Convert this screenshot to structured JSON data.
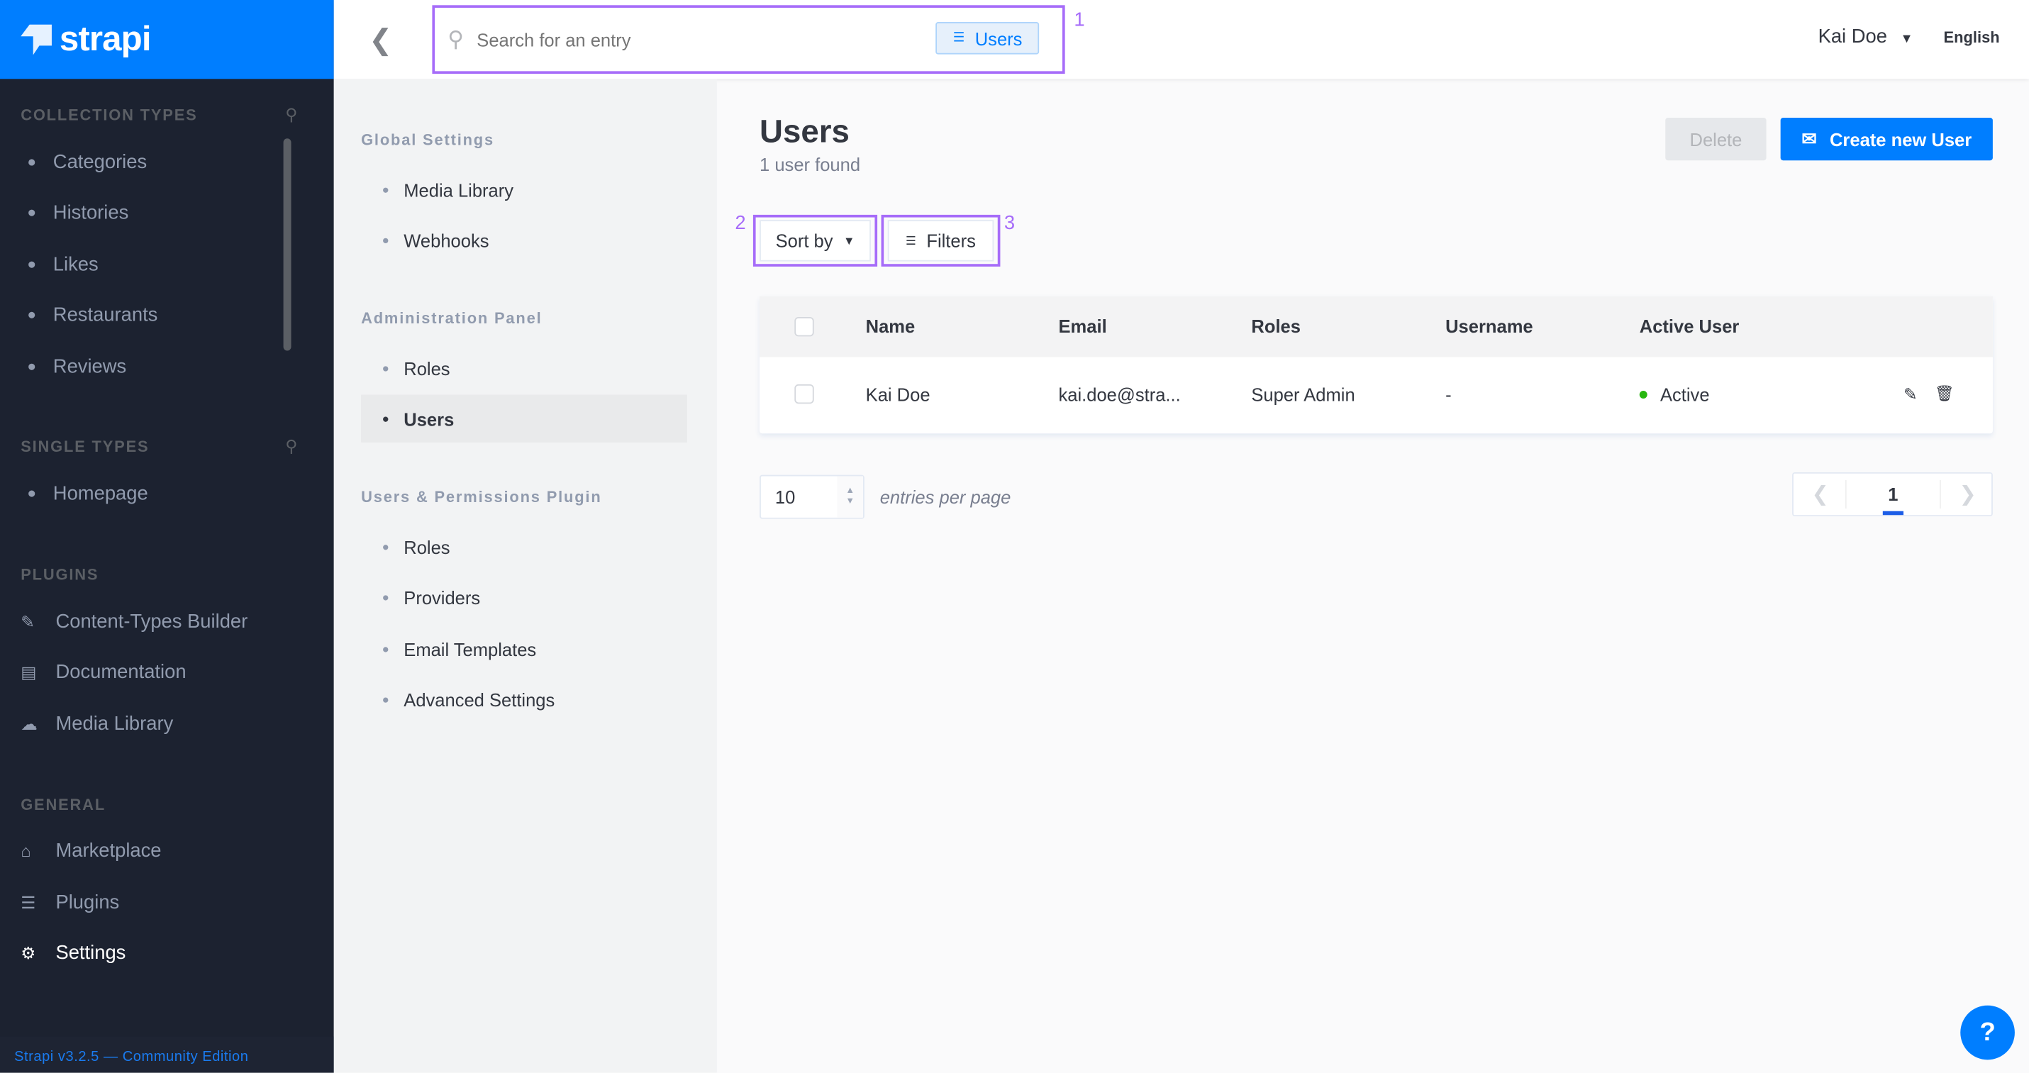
{
  "brand": {
    "name": "strapi",
    "version": "Strapi v3.2.5 — Community Edition",
    "accent": "#007eff"
  },
  "sidebar": {
    "collection_types": {
      "title": "Collection Types",
      "items": [
        "Categories",
        "Histories",
        "Likes",
        "Restaurants",
        "Reviews"
      ]
    },
    "single_types": {
      "title": "Single Types",
      "items": [
        "Homepage"
      ]
    },
    "plugins": {
      "title": "Plugins",
      "items": [
        {
          "label": "Content-Types Builder",
          "icon": "paintbrush-icon"
        },
        {
          "label": "Documentation",
          "icon": "book-icon"
        },
        {
          "label": "Media Library",
          "icon": "cloud-upload-icon"
        }
      ]
    },
    "general": {
      "title": "General",
      "items": [
        {
          "label": "Marketplace",
          "icon": "shopping-basket-icon"
        },
        {
          "label": "Plugins",
          "icon": "list-icon"
        },
        {
          "label": "Settings",
          "icon": "gear-icon",
          "active": true
        }
      ]
    }
  },
  "header": {
    "search_placeholder": "Search for an entry",
    "filter_chip": "Users",
    "user": "Kai Doe",
    "language": "English"
  },
  "annotations": [
    "1",
    "2",
    "3"
  ],
  "settings_nav": {
    "global": {
      "title": "Global Settings",
      "items": [
        "Media Library",
        "Webhooks"
      ]
    },
    "admin": {
      "title": "Administration Panel",
      "items": [
        "Roles",
        "Users"
      ],
      "active": "Users"
    },
    "users_permissions": {
      "title": "Users & Permissions Plugin",
      "items": [
        "Roles",
        "Providers",
        "Email Templates",
        "Advanced Settings"
      ]
    }
  },
  "main": {
    "title": "Users",
    "subtitle": "1 user found",
    "delete_label": "Delete",
    "create_label": "Create new User",
    "sort_label": "Sort by",
    "filters_label": "Filters",
    "columns": [
      "Name",
      "Email",
      "Roles",
      "Username",
      "Active User"
    ],
    "rows": [
      {
        "name": "Kai Doe",
        "email": "kai.doe@stra...",
        "roles": "Super Admin",
        "username": "-",
        "active": "Active",
        "active_color": "#27b70f"
      }
    ],
    "per_page": "10",
    "per_page_label": "entries per page",
    "current_page": "1"
  },
  "help": "?"
}
